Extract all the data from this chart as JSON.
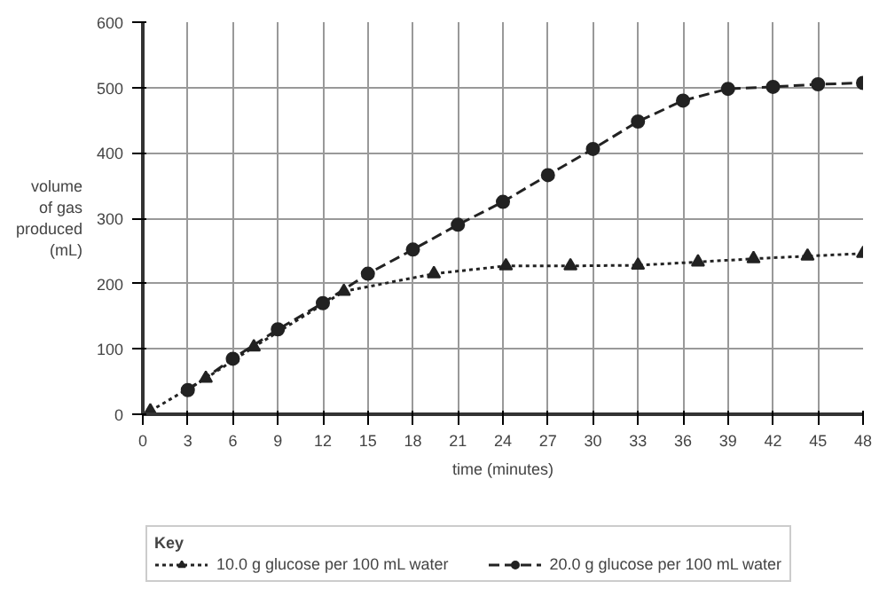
{
  "chart_data": {
    "type": "line",
    "xlabel": "time (minutes)",
    "ylabel": "volume\nof gas\nproduced\n(mL)",
    "legend_title": "Key",
    "legend": "bottom",
    "grid": true,
    "xlim": [
      0,
      48
    ],
    "ylim": [
      0,
      600
    ],
    "xticks": [
      0,
      3,
      6,
      9,
      12,
      15,
      18,
      21,
      24,
      27,
      30,
      33,
      36,
      39,
      42,
      45,
      48
    ],
    "yticks": [
      0,
      100,
      200,
      300,
      400,
      500,
      600
    ],
    "series": [
      {
        "name": "10.0 g glucose per 100 mL water",
        "color": "#222222",
        "marker": "triangle",
        "line_style": "dotted",
        "x": [
          0.5,
          4.2,
          7.4,
          13.4,
          19.4,
          24.2,
          28.5,
          33,
          37,
          40.7,
          44.3,
          48
        ],
        "values": [
          5,
          55,
          103,
          188,
          215,
          227,
          227,
          228,
          233,
          238,
          242,
          246
        ]
      },
      {
        "name": "20.0 g glucose per 100 mL water",
        "color": "#222222",
        "marker": "circle",
        "line_style": "dashed",
        "x": [
          3,
          6,
          9,
          12,
          15,
          18,
          21,
          24,
          27,
          30,
          33,
          36,
          39,
          42,
          45,
          48
        ],
        "values": [
          37,
          85,
          130,
          170,
          215,
          252,
          290,
          325,
          366,
          406,
          448,
          480,
          498,
          501,
          505,
          507
        ]
      }
    ]
  }
}
